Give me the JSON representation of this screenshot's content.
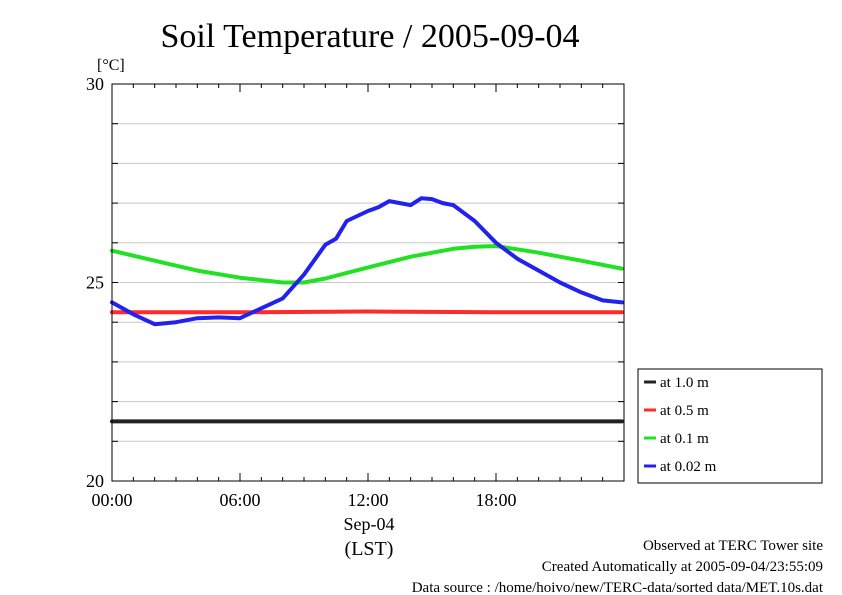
{
  "chart_data": {
    "type": "line",
    "title": "Soil Temperature / 2005-09-04",
    "yunit": "[°C]",
    "ylim": [
      20,
      30
    ],
    "yticks": [
      20,
      25,
      30
    ],
    "ygrid": [
      21,
      22,
      23,
      24,
      26,
      27,
      28,
      29
    ],
    "xlim": [
      0,
      24
    ],
    "xticks": [
      {
        "value": 0,
        "label": "00:00"
      },
      {
        "value": 6,
        "label": "06:00"
      },
      {
        "value": 12,
        "label": "12:00"
      },
      {
        "value": 18,
        "label": "18:00"
      }
    ],
    "xdate": "Sep-04",
    "xlabel": "(LST)",
    "grid": true,
    "legend_position": "right",
    "series": [
      {
        "name": "at 1.0 m",
        "color": "#222222",
        "x": [
          0,
          6,
          12,
          18,
          23.9
        ],
        "values": [
          21.5,
          21.5,
          21.5,
          21.5,
          21.5
        ]
      },
      {
        "name": "at 0.5 m",
        "color": "#ff2a2a",
        "x": [
          0,
          6,
          12,
          18,
          23.9
        ],
        "values": [
          24.25,
          24.25,
          24.27,
          24.25,
          24.25
        ]
      },
      {
        "name": "at 0.1 m",
        "color": "#22e022",
        "x": [
          0,
          2,
          4,
          6,
          8,
          9,
          10,
          12,
          14,
          16,
          17,
          18,
          20,
          22,
          23.9
        ],
        "values": [
          25.8,
          25.55,
          25.3,
          25.12,
          25.0,
          25.0,
          25.1,
          25.38,
          25.65,
          25.85,
          25.9,
          25.92,
          25.75,
          25.55,
          25.35
        ]
      },
      {
        "name": "at 0.02 m",
        "color": "#2222ee",
        "x": [
          0,
          1,
          2,
          3,
          4,
          5,
          6,
          7,
          8,
          9,
          10,
          10.5,
          11,
          12,
          12.5,
          13,
          13.5,
          14,
          14.5,
          15,
          15.5,
          16,
          17,
          18,
          19,
          20,
          21,
          22,
          23,
          23.9
        ],
        "values": [
          24.5,
          24.2,
          23.95,
          24.0,
          24.1,
          24.12,
          24.1,
          24.35,
          24.6,
          25.2,
          25.95,
          26.1,
          26.55,
          26.8,
          26.9,
          27.05,
          27.0,
          26.95,
          27.12,
          27.1,
          27.0,
          26.95,
          26.55,
          26.0,
          25.6,
          25.3,
          25.0,
          24.75,
          24.55,
          24.5
        ]
      }
    ]
  },
  "footer": {
    "line1": "Observed at TERC Tower site",
    "line2": "Created Automatically at 2005-09-04/23:55:09",
    "line3": "Data source : /home/hoivo/new/TERC-data/sorted  data/MET.10s.dat"
  }
}
